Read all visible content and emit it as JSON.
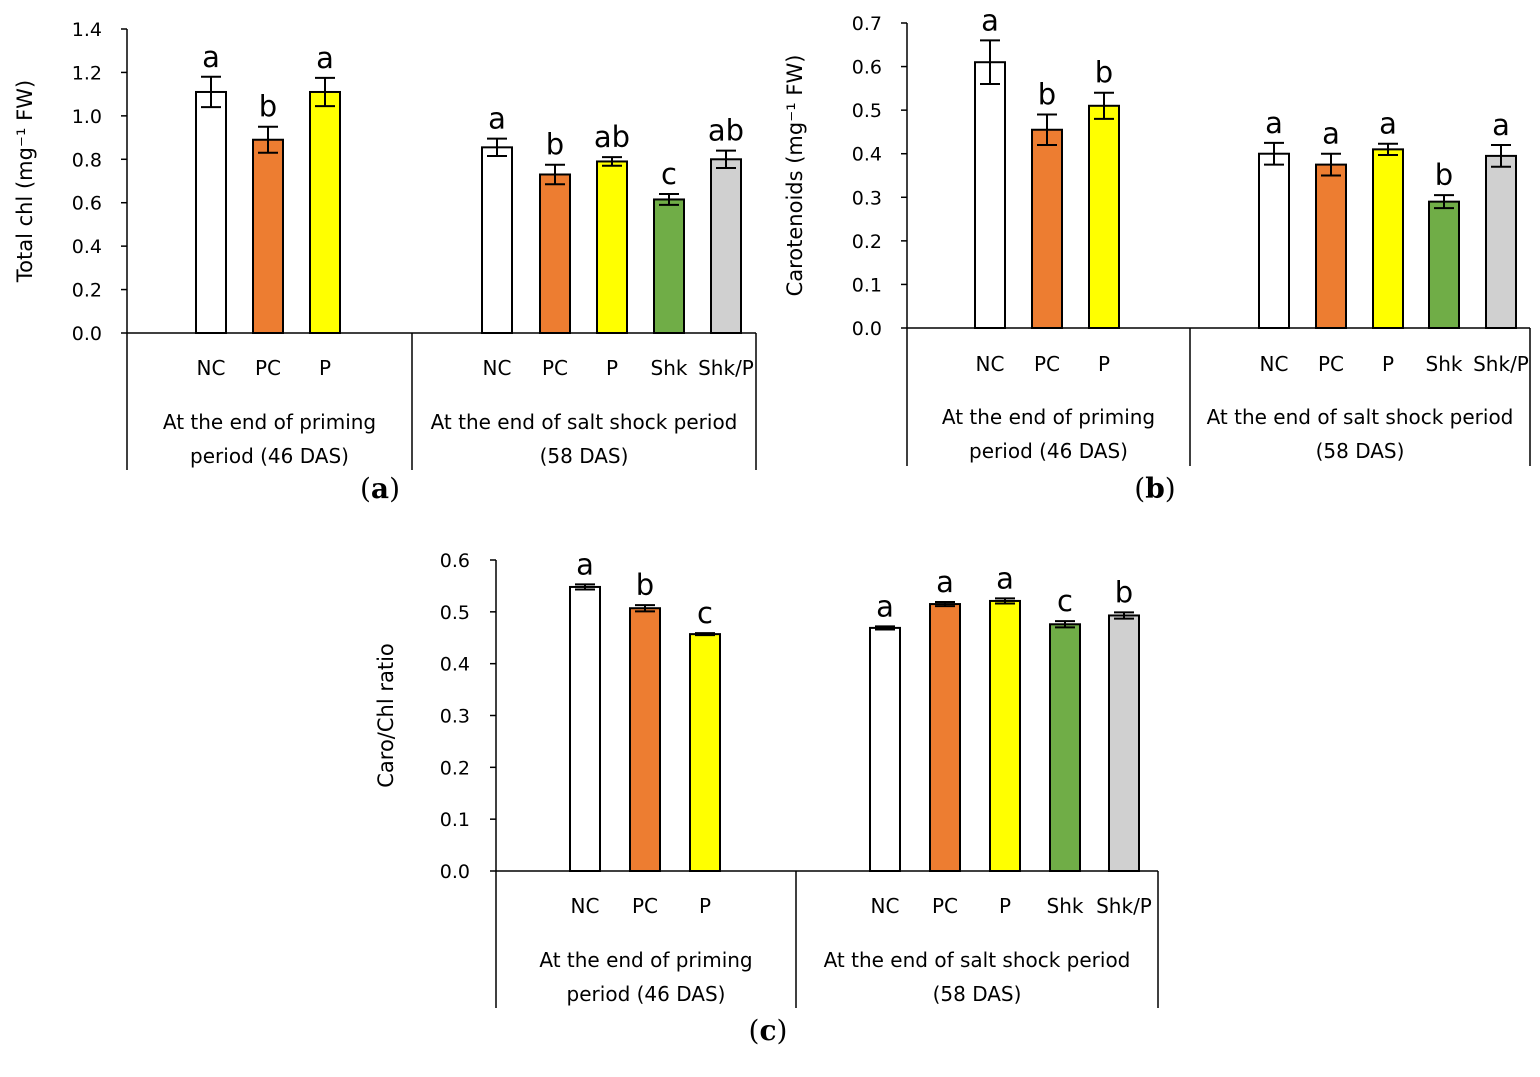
{
  "chart_data": [
    {
      "type": "bar",
      "panel_label": "a",
      "ylabel": "Total chl (mg⁻¹ FW)",
      "ylim": [
        0,
        1.4
      ],
      "yticks": [
        "0.0",
        "0.2",
        "0.4",
        "0.6",
        "0.8",
        "1.0",
        "1.2",
        "1.4"
      ],
      "groups": [
        {
          "label_lines": [
            "At the end of priming",
            "period (46 DAS)"
          ],
          "bars": [
            {
              "category": "NC",
              "value": 1.11,
              "error": 0.07,
              "sig": "a",
              "color": "#ffffff"
            },
            {
              "category": "PC",
              "value": 0.89,
              "error": 0.06,
              "sig": "b",
              "color": "#ED7D31"
            },
            {
              "category": "P",
              "value": 1.11,
              "error": 0.065,
              "sig": "a",
              "color": "#FFFF00"
            }
          ]
        },
        {
          "label_lines": [
            "At the end of salt shock period",
            "(58 DAS)"
          ],
          "bars": [
            {
              "category": "NC",
              "value": 0.855,
              "error": 0.04,
              "sig": "a",
              "color": "#ffffff"
            },
            {
              "category": "PC",
              "value": 0.73,
              "error": 0.045,
              "sig": "b",
              "color": "#ED7D31"
            },
            {
              "category": "P",
              "value": 0.79,
              "error": 0.02,
              "sig": "ab",
              "color": "#FFFF00"
            },
            {
              "category": "Shk",
              "value": 0.615,
              "error": 0.025,
              "sig": "c",
              "color": "#70AD47"
            },
            {
              "category": "Shk/P",
              "value": 0.8,
              "error": 0.04,
              "sig": "ab",
              "color": "#D0D0D0"
            }
          ]
        }
      ]
    },
    {
      "type": "bar",
      "panel_label": "b",
      "ylabel": "Carotenoids (mg⁻¹ FW)",
      "ylim": [
        0,
        0.7
      ],
      "yticks": [
        "0.0",
        "0.1",
        "0.2",
        "0.3",
        "0.4",
        "0.5",
        "0.6",
        "0.7"
      ],
      "groups": [
        {
          "label_lines": [
            "At the end of priming",
            "period (46 DAS)"
          ],
          "bars": [
            {
              "category": "NC",
              "value": 0.61,
              "error": 0.05,
              "sig": "a",
              "color": "#ffffff"
            },
            {
              "category": "PC",
              "value": 0.455,
              "error": 0.035,
              "sig": "b",
              "color": "#ED7D31"
            },
            {
              "category": "P",
              "value": 0.51,
              "error": 0.03,
              "sig": "b",
              "color": "#FFFF00"
            }
          ]
        },
        {
          "label_lines": [
            "At the end of salt shock period",
            "(58 DAS)"
          ],
          "bars": [
            {
              "category": "NC",
              "value": 0.4,
              "error": 0.025,
              "sig": "a",
              "color": "#ffffff"
            },
            {
              "category": "PC",
              "value": 0.375,
              "error": 0.025,
              "sig": "a",
              "color": "#ED7D31"
            },
            {
              "category": "P",
              "value": 0.41,
              "error": 0.013,
              "sig": "a",
              "color": "#FFFF00"
            },
            {
              "category": "Shk",
              "value": 0.29,
              "error": 0.015,
              "sig": "b",
              "color": "#70AD47"
            },
            {
              "category": "Shk/P",
              "value": 0.395,
              "error": 0.025,
              "sig": "a",
              "color": "#D0D0D0"
            }
          ]
        }
      ]
    },
    {
      "type": "bar",
      "panel_label": "c",
      "ylabel": "Caro/Chl ratio",
      "ylim": [
        0,
        0.6
      ],
      "yticks": [
        "0.0",
        "0.1",
        "0.2",
        "0.3",
        "0.4",
        "0.5",
        "0.6"
      ],
      "groups": [
        {
          "label_lines": [
            "At the end of priming",
            "period (46 DAS)"
          ],
          "bars": [
            {
              "category": "NC",
              "value": 0.548,
              "error": 0.005,
              "sig": "a",
              "color": "#ffffff"
            },
            {
              "category": "PC",
              "value": 0.507,
              "error": 0.006,
              "sig": "b",
              "color": "#ED7D31"
            },
            {
              "category": "P",
              "value": 0.457,
              "error": 0.002,
              "sig": "c",
              "color": "#FFFF00"
            }
          ]
        },
        {
          "label_lines": [
            "At the end of salt shock period",
            "(58 DAS)"
          ],
          "bars": [
            {
              "category": "NC",
              "value": 0.469,
              "error": 0.003,
              "sig": "a",
              "color": "#ffffff"
            },
            {
              "category": "PC",
              "value": 0.515,
              "error": 0.004,
              "sig": "a",
              "color": "#ED7D31"
            },
            {
              "category": "P",
              "value": 0.521,
              "error": 0.005,
              "sig": "a",
              "color": "#FFFF00"
            },
            {
              "category": "Shk",
              "value": 0.476,
              "error": 0.006,
              "sig": "c",
              "color": "#70AD47"
            },
            {
              "category": "Shk/P",
              "value": 0.493,
              "error": 0.006,
              "sig": "b",
              "color": "#D0D0D0"
            }
          ]
        }
      ]
    }
  ]
}
